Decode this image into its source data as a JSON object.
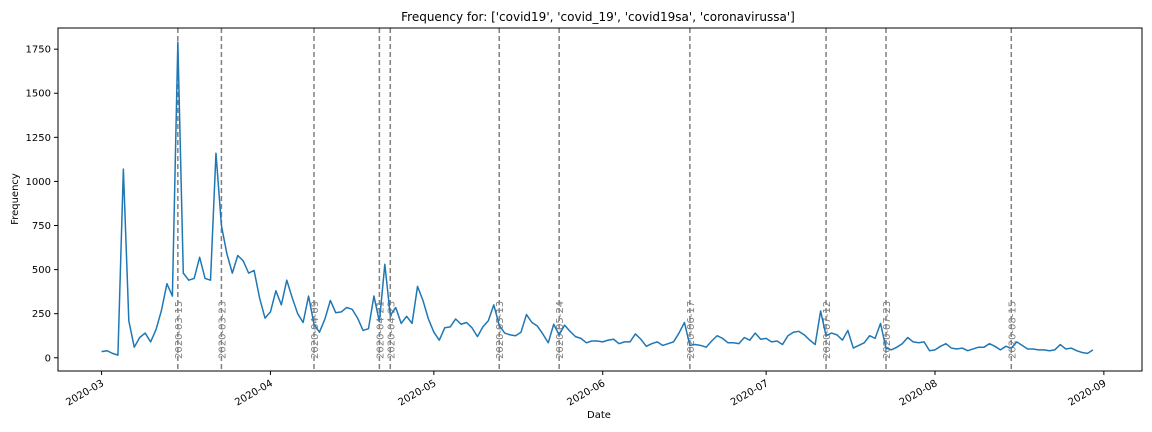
{
  "chart_data": {
    "type": "line",
    "title": "Frequency for: ['covid19', 'covid_19', 'covid19sa', 'coronavirussa']",
    "xlabel": "Date",
    "ylabel": "Frequency",
    "xlim": [
      "2020-02-22",
      "2020-09-08"
    ],
    "ylim": [
      -75,
      1870
    ],
    "x_ticks": [
      "2020-03-01",
      "2020-04-01",
      "2020-05-01",
      "2020-06-01",
      "2020-07-01",
      "2020-08-01",
      "2020-09-01"
    ],
    "x_tick_labels": [
      "2020-03",
      "2020-04",
      "2020-05",
      "2020-06",
      "2020-07",
      "2020-08",
      "2020-09"
    ],
    "y_ticks": [
      0,
      250,
      500,
      750,
      1000,
      1250,
      1500,
      1750
    ],
    "series_color": "#1f77b4",
    "vline_color": "#808080",
    "event_lines": [
      {
        "date": "2020-03-15",
        "label": "2020-03-15"
      },
      {
        "date": "2020-03-23",
        "label": "2020-03-23"
      },
      {
        "date": "2020-04-09",
        "label": "2020-04-09"
      },
      {
        "date": "2020-04-21",
        "label": "2020-04-21"
      },
      {
        "date": "2020-04-23",
        "label": "2020-04-23"
      },
      {
        "date": "2020-05-13",
        "label": "2020-05-13"
      },
      {
        "date": "2020-05-24",
        "label": "2020-05-24"
      },
      {
        "date": "2020-06-17",
        "label": "2020-06-17"
      },
      {
        "date": "2020-07-12",
        "label": "2020-07-12"
      },
      {
        "date": "2020-07-23",
        "label": "2020-07-23"
      },
      {
        "date": "2020-08-15",
        "label": "2020-08-15"
      }
    ],
    "series": [
      {
        "start_date": "2020-03-01",
        "values": [
          35,
          40,
          25,
          15,
          1070,
          210,
          60,
          115,
          140,
          90,
          160,
          270,
          420,
          350,
          1790,
          480,
          440,
          450,
          570,
          450,
          440,
          1160,
          750,
          590,
          480,
          580,
          550,
          480,
          495,
          340,
          225,
          260,
          380,
          300,
          440,
          340,
          250,
          200,
          350,
          190,
          145,
          220,
          325,
          255,
          260,
          285,
          275,
          225,
          155,
          165,
          350,
          205,
          530,
          240,
          285,
          195,
          235,
          195,
          405,
          325,
          220,
          145,
          100,
          170,
          175,
          220,
          190,
          200,
          170,
          120,
          175,
          210,
          300,
          185,
          140,
          130,
          125,
          145,
          245,
          200,
          180,
          135,
          85,
          190,
          130,
          185,
          150,
          120,
          110,
          85,
          95,
          95,
          90,
          100,
          105,
          80,
          90,
          90,
          135,
          105,
          65,
          80,
          90,
          70,
          80,
          90,
          140,
          200,
          70,
          75,
          70,
          60,
          95,
          125,
          110,
          85,
          85,
          80,
          115,
          100,
          140,
          105,
          110,
          90,
          95,
          75,
          125,
          145,
          150,
          130,
          100,
          75,
          265,
          125,
          140,
          130,
          100,
          155,
          55,
          70,
          85,
          125,
          110,
          195,
          55,
          45,
          60,
          80,
          115,
          90,
          85,
          90,
          40,
          45,
          65,
          80,
          55,
          50,
          55,
          40,
          50,
          60,
          60,
          80,
          65,
          45,
          65,
          55,
          90,
          70,
          50,
          50,
          45,
          45,
          40,
          45,
          75,
          50,
          55,
          40,
          30,
          25,
          45
        ]
      }
    ]
  }
}
